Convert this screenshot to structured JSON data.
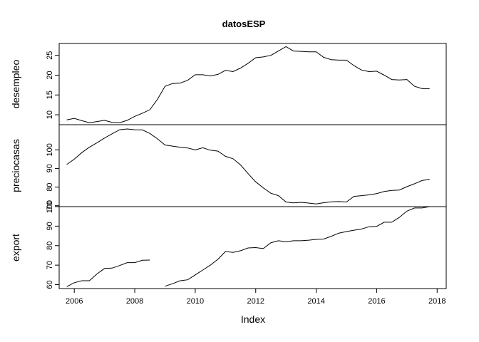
{
  "chart_data": {
    "type": "line",
    "title": "datosESP",
    "xlabel": "Index",
    "x_ticks": [
      "2006",
      "2008",
      "2010",
      "2012",
      "2014",
      "2016",
      "2018"
    ],
    "xlim": [
      2005.5,
      2018.3
    ],
    "x": [
      2005.75,
      2006.0,
      2006.25,
      2006.5,
      2006.75,
      2007.0,
      2007.25,
      2007.5,
      2007.75,
      2008.0,
      2008.25,
      2008.5,
      2008.75,
      2009.0,
      2009.25,
      2009.5,
      2009.75,
      2010.0,
      2010.25,
      2010.5,
      2010.75,
      2011.0,
      2011.25,
      2011.5,
      2011.75,
      2012.0,
      2012.25,
      2012.5,
      2012.75,
      2013.0,
      2013.25,
      2013.5,
      2013.75,
      2014.0,
      2014.25,
      2014.5,
      2014.75,
      2015.0,
      2015.25,
      2015.5,
      2015.75,
      2016.0,
      2016.25,
      2016.5,
      2016.75,
      2017.0,
      2017.25,
      2017.5,
      2017.75
    ],
    "panels": [
      {
        "name": "desempleo",
        "ylabel": "desempleo",
        "ylim": [
          7.5,
          28
        ],
        "y_ticks": [
          "10",
          "15",
          "20",
          "25"
        ],
        "y_tick_values": [
          10,
          15,
          20,
          25
        ],
        "values": [
          8.7,
          9.1,
          8.5,
          8.0,
          8.3,
          8.6,
          8.1,
          8.0,
          8.6,
          9.6,
          10.4,
          11.3,
          13.9,
          17.2,
          17.9,
          18.0,
          18.7,
          20.1,
          20.1,
          19.8,
          20.2,
          21.2,
          20.9,
          21.8,
          23.0,
          24.4,
          24.6,
          25.0,
          26.1,
          27.2,
          26.1,
          26.0,
          25.9,
          25.9,
          24.5,
          23.9,
          23.8,
          23.8,
          22.4,
          21.3,
          20.9,
          21.0,
          20.0,
          18.9,
          18.8,
          18.9,
          17.2,
          16.6,
          16.6
        ]
      },
      {
        "name": "preciocasas",
        "ylabel": "preciocasas",
        "ylim": [
          69.5,
          113.5
        ],
        "y_ticks": [
          "70",
          "80",
          "90",
          "100"
        ],
        "y_tick_values": [
          70,
          80,
          90,
          100
        ],
        "values": [
          92.1,
          95.0,
          98.5,
          101.4,
          103.8,
          106.3,
          108.6,
          110.8,
          111.2,
          110.8,
          110.7,
          108.8,
          105.9,
          102.6,
          102.0,
          101.4,
          101.0,
          100.0,
          101.1,
          99.8,
          99.3,
          96.5,
          95.2,
          91.9,
          87.2,
          82.8,
          79.6,
          76.7,
          75.4,
          72.0,
          71.5,
          71.8,
          71.4,
          70.9,
          71.6,
          72.1,
          72.2,
          72.0,
          75.0,
          75.4,
          75.8,
          76.5,
          77.6,
          78.2,
          78.4,
          80.2,
          81.8,
          83.5,
          84.2
        ]
      },
      {
        "name": "export",
        "ylabel": "export",
        "ylim": [
          58,
          100
        ],
        "y_ticks": [
          "60",
          "70",
          "80",
          "90",
          "100"
        ],
        "y_tick_values": [
          60,
          70,
          80,
          90,
          100
        ],
        "values": [
          59.0,
          61.0,
          62.0,
          62.0,
          65.5,
          68.3,
          68.5,
          69.8,
          71.3,
          71.3,
          72.5,
          72.6,
          null,
          59.2,
          60.5,
          62.0,
          62.5,
          65.0,
          67.5,
          70.0,
          73.0,
          77.0,
          76.5,
          77.4,
          78.8,
          79.0,
          78.5,
          81.5,
          82.5,
          82.0,
          82.5,
          82.5,
          82.8,
          83.2,
          83.4,
          84.8,
          86.4,
          87.2,
          87.9,
          88.5,
          89.7,
          89.9,
          92.0,
          92.0,
          94.5,
          97.7,
          99.3,
          99.3,
          100.0
        ]
      }
    ],
    "grid": false,
    "legend": "none"
  }
}
